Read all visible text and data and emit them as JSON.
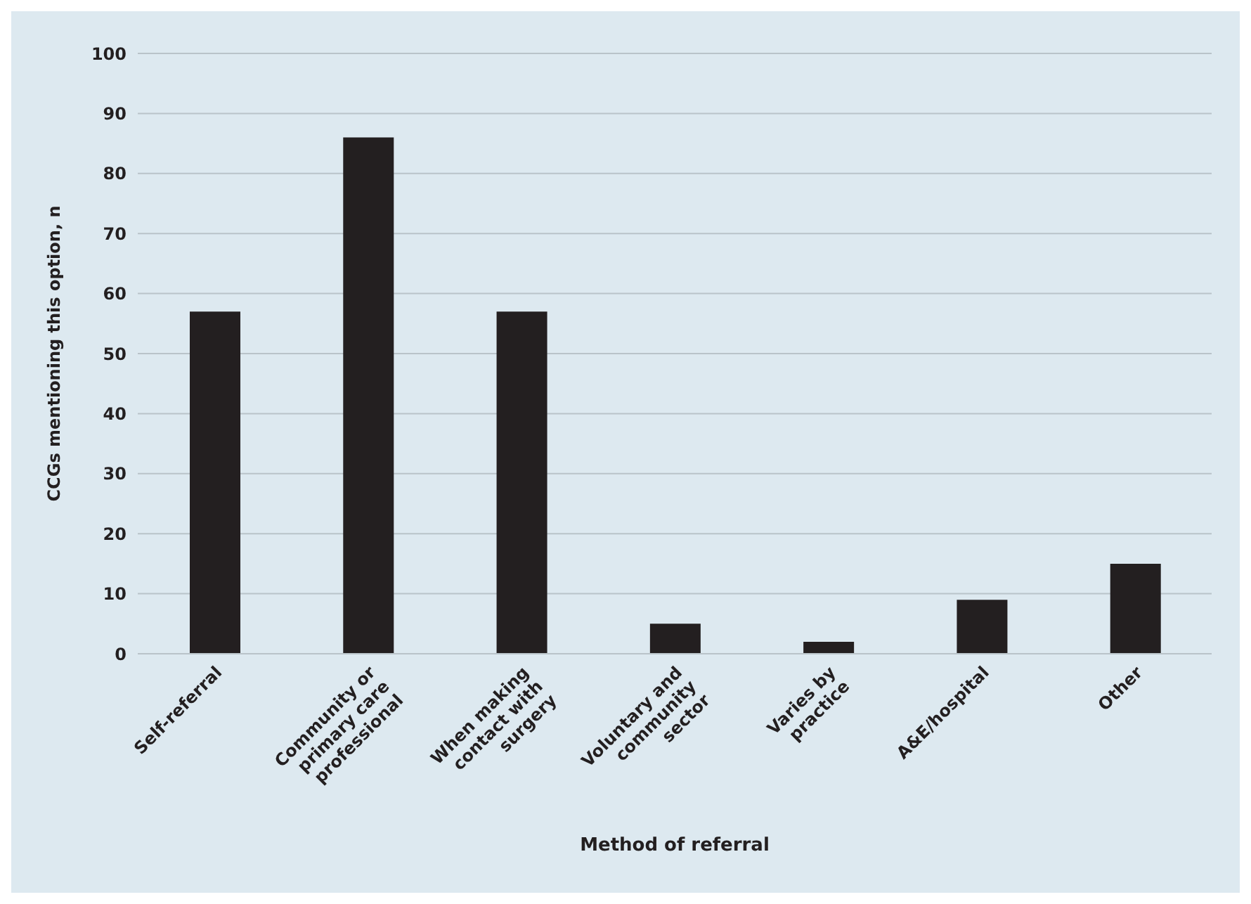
{
  "chart_data": {
    "type": "bar",
    "xlabel": "Method of referral",
    "ylabel": "CCGs mentioning this option, n",
    "categories": [
      "Self-referral",
      "Community or primary care professional",
      "When making contact with surgery",
      "Voluntary and community sector",
      "Varies by practice",
      "A&E/hospital",
      "Other"
    ],
    "values": [
      57,
      86,
      57,
      5,
      2,
      9,
      15
    ],
    "color": "#231f20",
    "ylim": [
      0,
      100
    ],
    "yticks": [
      0,
      10,
      20,
      30,
      40,
      50,
      60,
      70,
      80,
      90,
      100
    ],
    "grid": "y",
    "legend": false
  }
}
